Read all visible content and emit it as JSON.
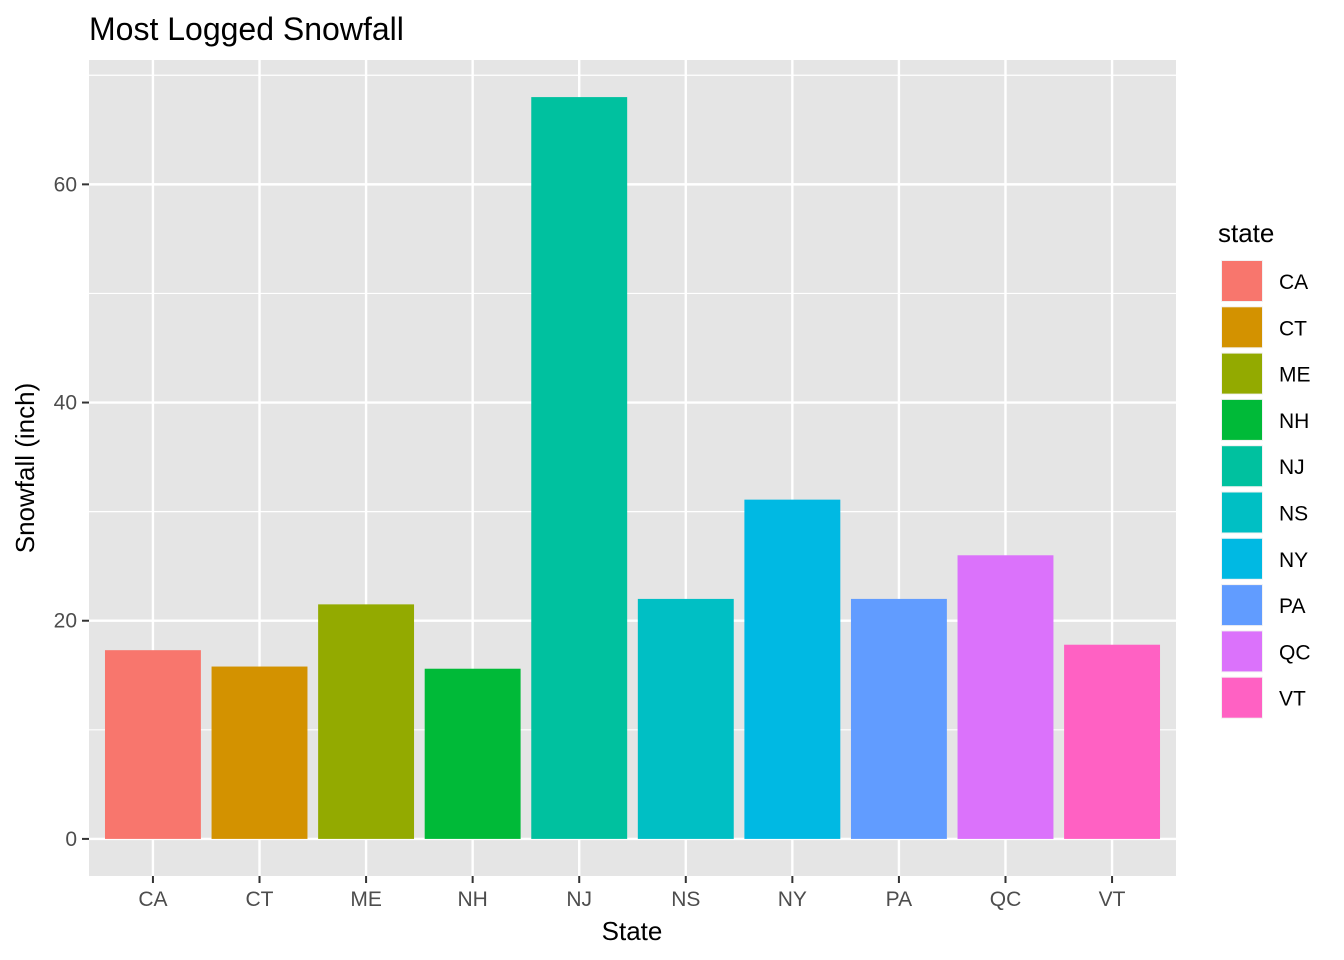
{
  "chart_data": {
    "type": "bar",
    "title": "Most Logged Snowfall",
    "xlabel": "State",
    "ylabel": "Snowfall (inch)",
    "categories": [
      "CA",
      "CT",
      "ME",
      "NH",
      "NJ",
      "NS",
      "NY",
      "PA",
      "QC",
      "VT"
    ],
    "values": [
      17.3,
      15.8,
      21.5,
      15.6,
      68.0,
      22.0,
      31.1,
      22.0,
      26.0,
      17.8
    ],
    "colors": [
      "#F8766D",
      "#D39200",
      "#93AA00",
      "#00BA38",
      "#00C19F",
      "#00BFC4",
      "#00B9E3",
      "#619CFF",
      "#DB72FB",
      "#FF61C3"
    ],
    "ylim": [
      -3.4,
      71.4
    ],
    "yticks": [
      0,
      20,
      40,
      60
    ],
    "ytick_labels": [
      "0",
      "20",
      "40",
      "60"
    ],
    "grid": true,
    "panel_background": "#E5E5E5",
    "legend": {
      "title": "state",
      "position": "right",
      "entries": [
        "CA",
        "CT",
        "ME",
        "NH",
        "NJ",
        "NS",
        "NY",
        "PA",
        "QC",
        "VT"
      ]
    }
  }
}
